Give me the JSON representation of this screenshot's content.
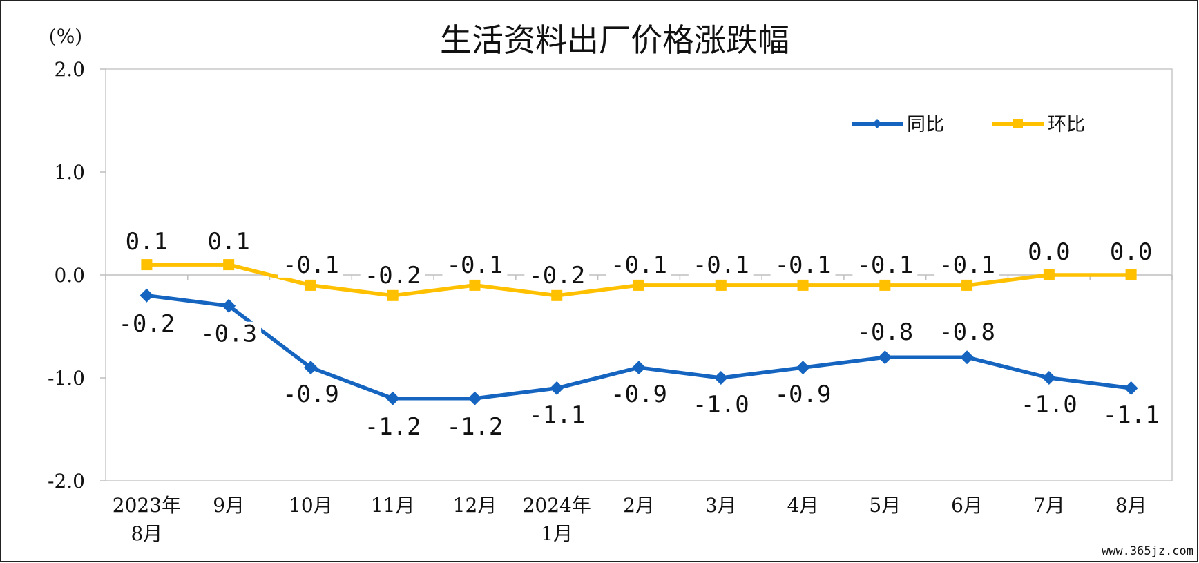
{
  "chart_data": {
    "type": "line",
    "title": "生活资料出厂价格涨跌幅",
    "unit_label": "(%)",
    "ylim": [
      -2.0,
      2.0
    ],
    "yticks": [
      "2.0",
      "1.0",
      "0.0",
      "-1.0",
      "-2.0"
    ],
    "ytick_values": [
      2.0,
      1.0,
      0.0,
      -1.0,
      -2.0
    ],
    "categories": [
      [
        "2023年",
        "8月"
      ],
      [
        "9月"
      ],
      [
        "10月"
      ],
      [
        "11月"
      ],
      [
        "12月"
      ],
      [
        "2024年",
        "1月"
      ],
      [
        "2月"
      ],
      [
        "3月"
      ],
      [
        "4月"
      ],
      [
        "5月"
      ],
      [
        "6月"
      ],
      [
        "7月"
      ],
      [
        "8月"
      ]
    ],
    "series": [
      {
        "name": "同比",
        "color": "#1565C0",
        "marker": "diamond",
        "values": [
          -0.2,
          -0.3,
          -0.9,
          -1.2,
          -1.2,
          -1.1,
          -0.9,
          -1.0,
          -0.9,
          -0.8,
          -0.8,
          -1.0,
          -1.1
        ],
        "labels": [
          "-0.2",
          "-0.3",
          "-0.9",
          "-1.2",
          "-1.2",
          "-1.1",
          "-0.9",
          "-1.0",
          "-0.9",
          "-0.8",
          "-0.8",
          "-1.0",
          "-1.1"
        ]
      },
      {
        "name": "环比",
        "color": "#FFC000",
        "marker": "square",
        "values": [
          0.1,
          0.1,
          -0.1,
          -0.2,
          -0.1,
          -0.2,
          -0.1,
          -0.1,
          -0.1,
          -0.1,
          -0.1,
          0.0,
          0.0
        ],
        "labels": [
          "0.1",
          "0.1",
          "-0.1",
          "-0.2",
          "-0.1",
          "-0.2",
          "-0.1",
          "-0.1",
          "-0.1",
          "-0.1",
          "-0.1",
          "0.0",
          "0.0"
        ]
      }
    ],
    "legend": "top-right",
    "grid": false
  },
  "watermark": "www.365jz.com"
}
